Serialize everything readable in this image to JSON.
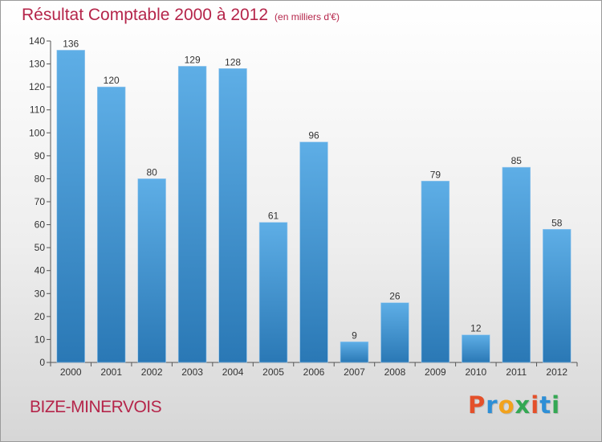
{
  "title": "Résultat Comptable 2000 à 2012",
  "subtitle": "(en milliers d'€)",
  "commune": "BIZE-MINERVOIS",
  "logo": {
    "text": "Proxiti",
    "colors": [
      "#e4502a",
      "#2e8fd6",
      "#f2a21c",
      "#34a853",
      "#e4502a",
      "#2e8fd6",
      "#34a853"
    ]
  },
  "colors": {
    "title": "#b5254a",
    "bar_top": "#5eaee6",
    "bar_bottom": "#2a78b5"
  },
  "chart_data": {
    "type": "bar",
    "categories": [
      "2000",
      "2001",
      "2002",
      "2003",
      "2004",
      "2005",
      "2006",
      "2007",
      "2008",
      "2009",
      "2010",
      "2011",
      "2012"
    ],
    "values": [
      136,
      120,
      80,
      129,
      128,
      61,
      96,
      9,
      26,
      79,
      12,
      85,
      58
    ],
    "data_labels": [
      "136",
      "120",
      "80",
      "129",
      "128",
      "61",
      "96",
      "9",
      "26",
      "79",
      "12",
      "85",
      "58"
    ],
    "title": "Résultat Comptable 2000 à 2012",
    "xlabel": "",
    "ylabel": "",
    "ylim": [
      0,
      140
    ],
    "yticks": [
      0,
      10,
      20,
      30,
      40,
      50,
      60,
      70,
      80,
      90,
      100,
      110,
      120,
      130,
      140
    ],
    "grid": false
  }
}
